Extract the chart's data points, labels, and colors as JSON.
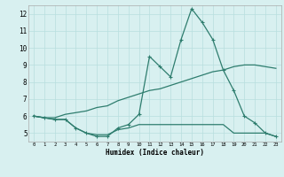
{
  "xlabel": "Humidex (Indice chaleur)",
  "x": [
    0,
    1,
    2,
    3,
    4,
    5,
    6,
    7,
    8,
    9,
    10,
    11,
    12,
    13,
    14,
    15,
    16,
    17,
    18,
    19,
    20,
    21,
    22,
    23
  ],
  "line1": [
    6.0,
    5.9,
    5.8,
    5.8,
    5.3,
    5.0,
    4.8,
    4.8,
    5.3,
    5.5,
    6.1,
    9.5,
    8.9,
    8.3,
    10.5,
    12.3,
    11.5,
    10.5,
    8.7,
    7.5,
    6.0,
    5.6,
    5.0,
    4.8
  ],
  "line2": [
    6.0,
    5.9,
    5.9,
    6.1,
    6.2,
    6.3,
    6.5,
    6.6,
    6.9,
    7.1,
    7.3,
    7.5,
    7.6,
    7.8,
    8.0,
    8.2,
    8.4,
    8.6,
    8.7,
    8.9,
    9.0,
    9.0,
    8.9,
    8.8
  ],
  "line3": [
    6.0,
    5.9,
    5.8,
    5.8,
    5.3,
    5.0,
    4.9,
    4.9,
    5.2,
    5.3,
    5.5,
    5.5,
    5.5,
    5.5,
    5.5,
    5.5,
    5.5,
    5.5,
    5.5,
    5.0,
    5.0,
    5.0,
    5.0,
    4.8
  ],
  "color": "#2e7d6e",
  "bg_color": "#d8f0f0",
  "grid_color": "#b8dede",
  "ylim": [
    4.5,
    12.5
  ],
  "xlim": [
    -0.5,
    23.5
  ],
  "yticks": [
    5,
    6,
    7,
    8,
    9,
    10,
    11,
    12
  ],
  "xticks": [
    0,
    1,
    2,
    3,
    4,
    5,
    6,
    7,
    8,
    9,
    10,
    11,
    12,
    13,
    14,
    15,
    16,
    17,
    18,
    19,
    20,
    21,
    22,
    23
  ]
}
